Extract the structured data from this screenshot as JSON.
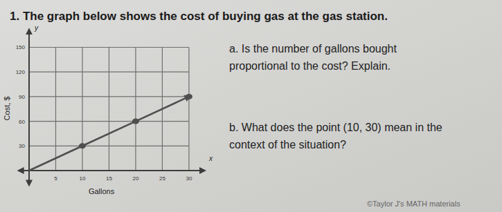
{
  "header": {
    "title": "1. The graph below shows the cost of buying gas at the gas station."
  },
  "questions": [
    {
      "lines": [
        "a. Is the number of gallons bought",
        "proportional to the cost? Explain."
      ]
    },
    {
      "lines": [
        "b. What does the point (10, 30) mean in the",
        "context of the situation?"
      ]
    }
  ],
  "credit": "©Taylor J's MATH materials",
  "chart_data": {
    "type": "line",
    "x_label": "Gallons",
    "y_label": "Cost, $",
    "annotations": [
      {
        "text": "y"
      },
      {
        "text": "x"
      }
    ],
    "xlim": [
      -2,
      33
    ],
    "ylim": [
      -18,
      172
    ],
    "xticks": [
      5,
      10,
      15,
      20,
      25,
      30
    ],
    "yticks": [
      30,
      60,
      90,
      120,
      150
    ],
    "grid": true,
    "series": [
      {
        "type": "line",
        "color": "#4f4f4f",
        "x": [
          0,
          10,
          20,
          30
        ],
        "values": [
          0,
          30,
          60,
          90
        ]
      },
      {
        "type": "scatter",
        "marker": "circle",
        "color": "#4f4f4f",
        "x": [
          10,
          20,
          30
        ],
        "values": [
          30,
          60,
          90
        ]
      }
    ]
  }
}
